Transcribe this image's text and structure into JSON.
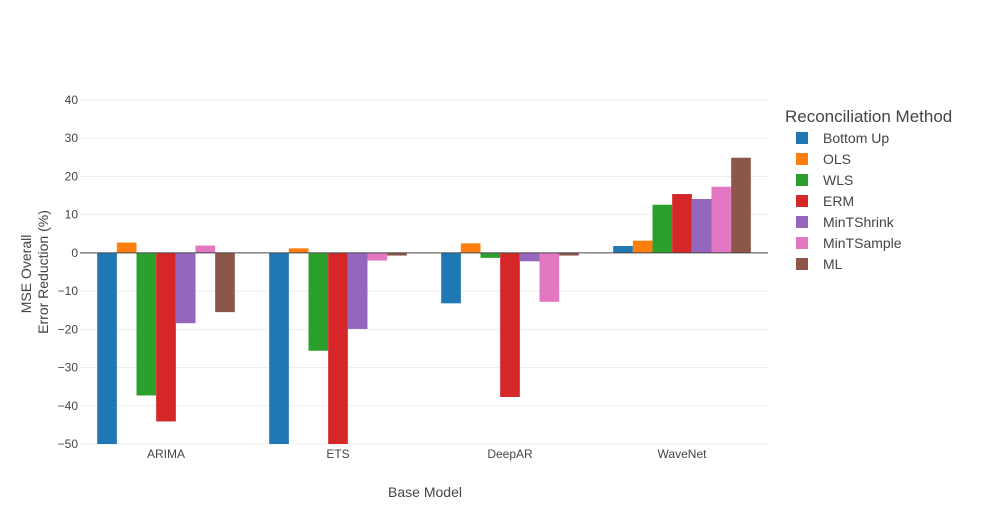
{
  "chart_data": {
    "type": "bar",
    "xlabel": "Base Model",
    "ylabel_lines": [
      "MSE Overall",
      "Error Reduction (%)"
    ],
    "categories": [
      "ARIMA",
      "ETS",
      "DeepAR",
      "WaveNet"
    ],
    "ylim": [
      -50,
      40
    ],
    "yticks": [
      40,
      30,
      20,
      10,
      0,
      -10,
      -20,
      -30,
      -40,
      -50
    ],
    "ytick_labels": [
      "40",
      "30",
      "20",
      "10",
      "0",
      "−10",
      "−20",
      "−30",
      "−40",
      "−50"
    ],
    "grid": true,
    "legend": {
      "title": "Reconciliation Method",
      "placement": "right"
    },
    "series": [
      {
        "name": "Bottom Up",
        "color": "#1f77b4",
        "values": [
          -50,
          -50,
          -13.2,
          1.8
        ]
      },
      {
        "name": "OLS",
        "color": "#ff7f0e",
        "values": [
          2.7,
          1.2,
          2.5,
          3.2
        ]
      },
      {
        "name": "WLS",
        "color": "#2ca02c",
        "values": [
          -37.3,
          -25.6,
          -1.3,
          12.6
        ]
      },
      {
        "name": "ERM",
        "color": "#d62728",
        "values": [
          -44.1,
          -50,
          -37.7,
          15.4
        ]
      },
      {
        "name": "MinTShrink",
        "color": "#9467bd",
        "values": [
          -18.4,
          -19.9,
          -2.2,
          14.1
        ]
      },
      {
        "name": "MinTSample",
        "color": "#e377c2",
        "values": [
          1.9,
          -2.0,
          -12.8,
          17.3
        ]
      },
      {
        "name": "ML",
        "color": "#8c564b",
        "values": [
          -15.5,
          -0.7,
          -0.7,
          24.9
        ]
      }
    ]
  }
}
